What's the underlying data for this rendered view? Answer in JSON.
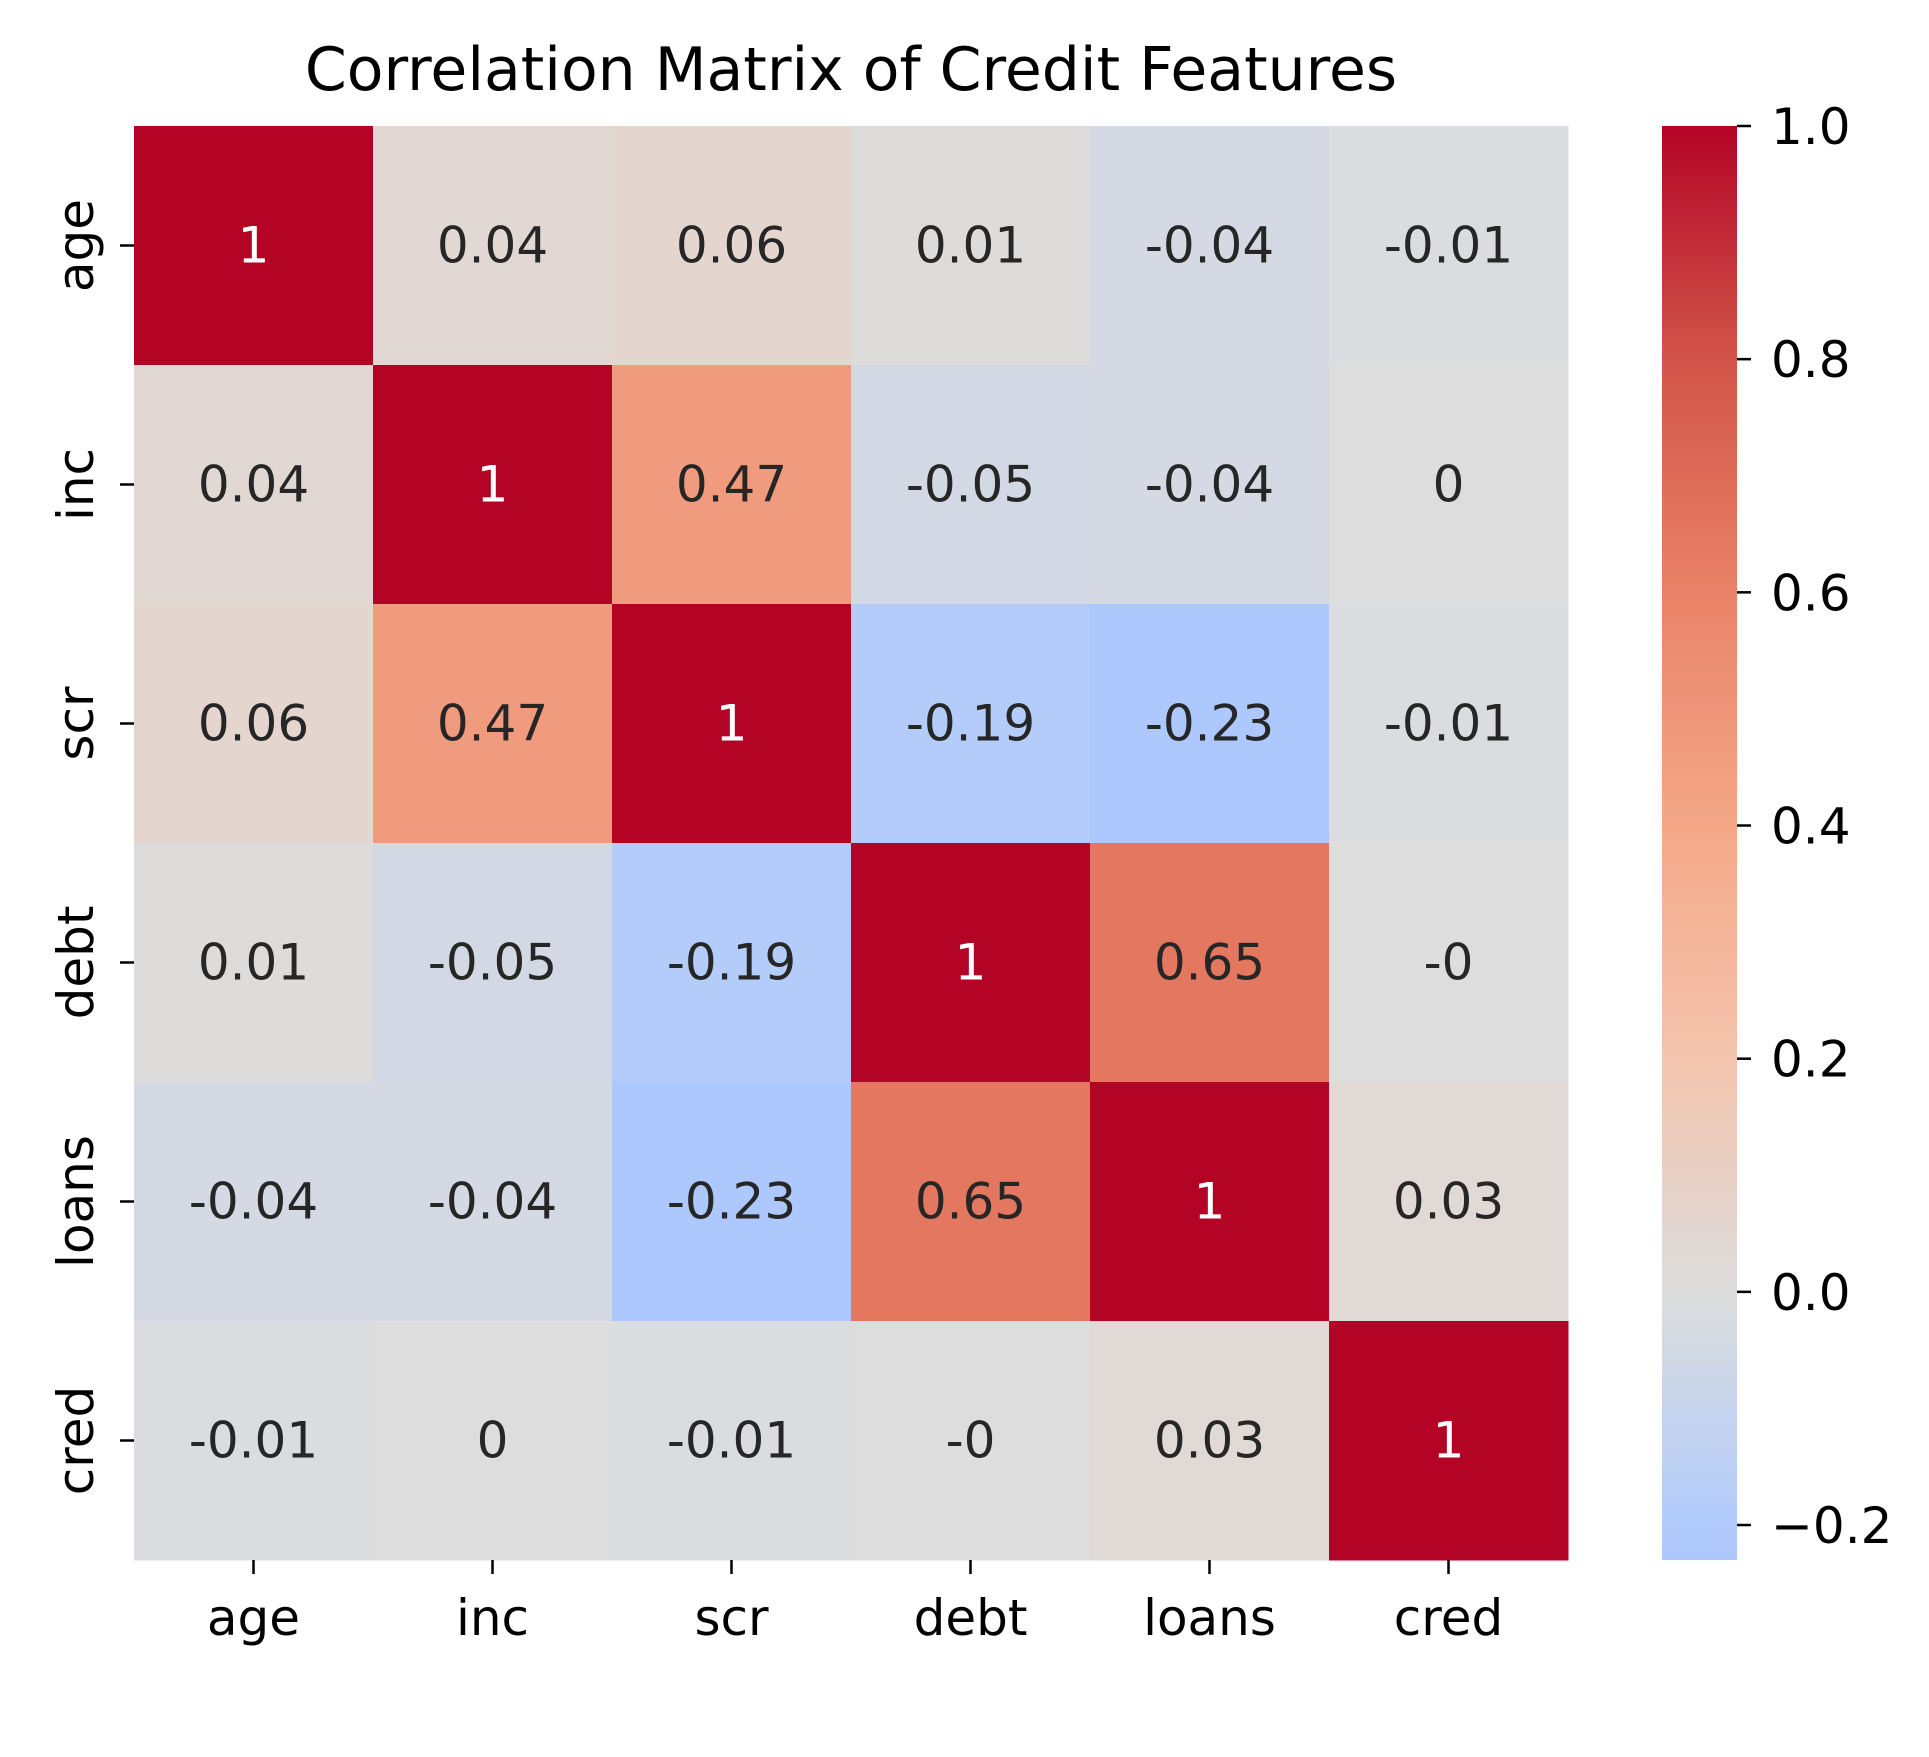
{
  "chart_data": {
    "type": "heatmap",
    "title": "Correlation Matrix of Credit Features",
    "xlabel": "",
    "ylabel": "",
    "labels": [
      "age",
      "inc",
      "scr",
      "debt",
      "loans",
      "cred"
    ],
    "matrix": [
      [
        1.0,
        0.04,
        0.06,
        0.01,
        -0.04,
        -0.01
      ],
      [
        0.04,
        1.0,
        0.47,
        -0.05,
        -0.04,
        0.0
      ],
      [
        0.06,
        0.47,
        1.0,
        -0.19,
        -0.23,
        -0.01
      ],
      [
        0.01,
        -0.05,
        -0.19,
        1.0,
        0.65,
        -0.0
      ],
      [
        -0.04,
        -0.04,
        -0.23,
        0.65,
        1.0,
        0.03
      ],
      [
        -0.01,
        0.0,
        -0.01,
        -0.0,
        0.03,
        1.0
      ]
    ],
    "annotations": [
      [
        "1",
        "0.04",
        "0.06",
        "0.01",
        "-0.04",
        "-0.01"
      ],
      [
        "0.04",
        "1",
        "0.47",
        "-0.05",
        "-0.04",
        "0"
      ],
      [
        "0.06",
        "0.47",
        "1",
        "-0.19",
        "-0.23",
        "-0.01"
      ],
      [
        "0.01",
        "-0.05",
        "-0.19",
        "1",
        "0.65",
        "-0"
      ],
      [
        "-0.04",
        "-0.04",
        "-0.23",
        "0.65",
        "1",
        "0.03"
      ],
      [
        "-0.01",
        "0",
        "-0.01",
        "-0",
        "0.03",
        "1"
      ]
    ],
    "colormap": "coolwarm",
    "center": 0,
    "vmin": -0.23,
    "vmax": 1.0,
    "colorbar": {
      "ticks": [
        -0.2,
        0.0,
        0.2,
        0.4,
        0.6,
        0.8,
        1.0
      ],
      "tick_labels": [
        "−0.2",
        "0.0",
        "0.2",
        "0.4",
        "0.6",
        "0.8",
        "1.0"
      ]
    },
    "grid": false,
    "legend": "colorbar-right"
  }
}
